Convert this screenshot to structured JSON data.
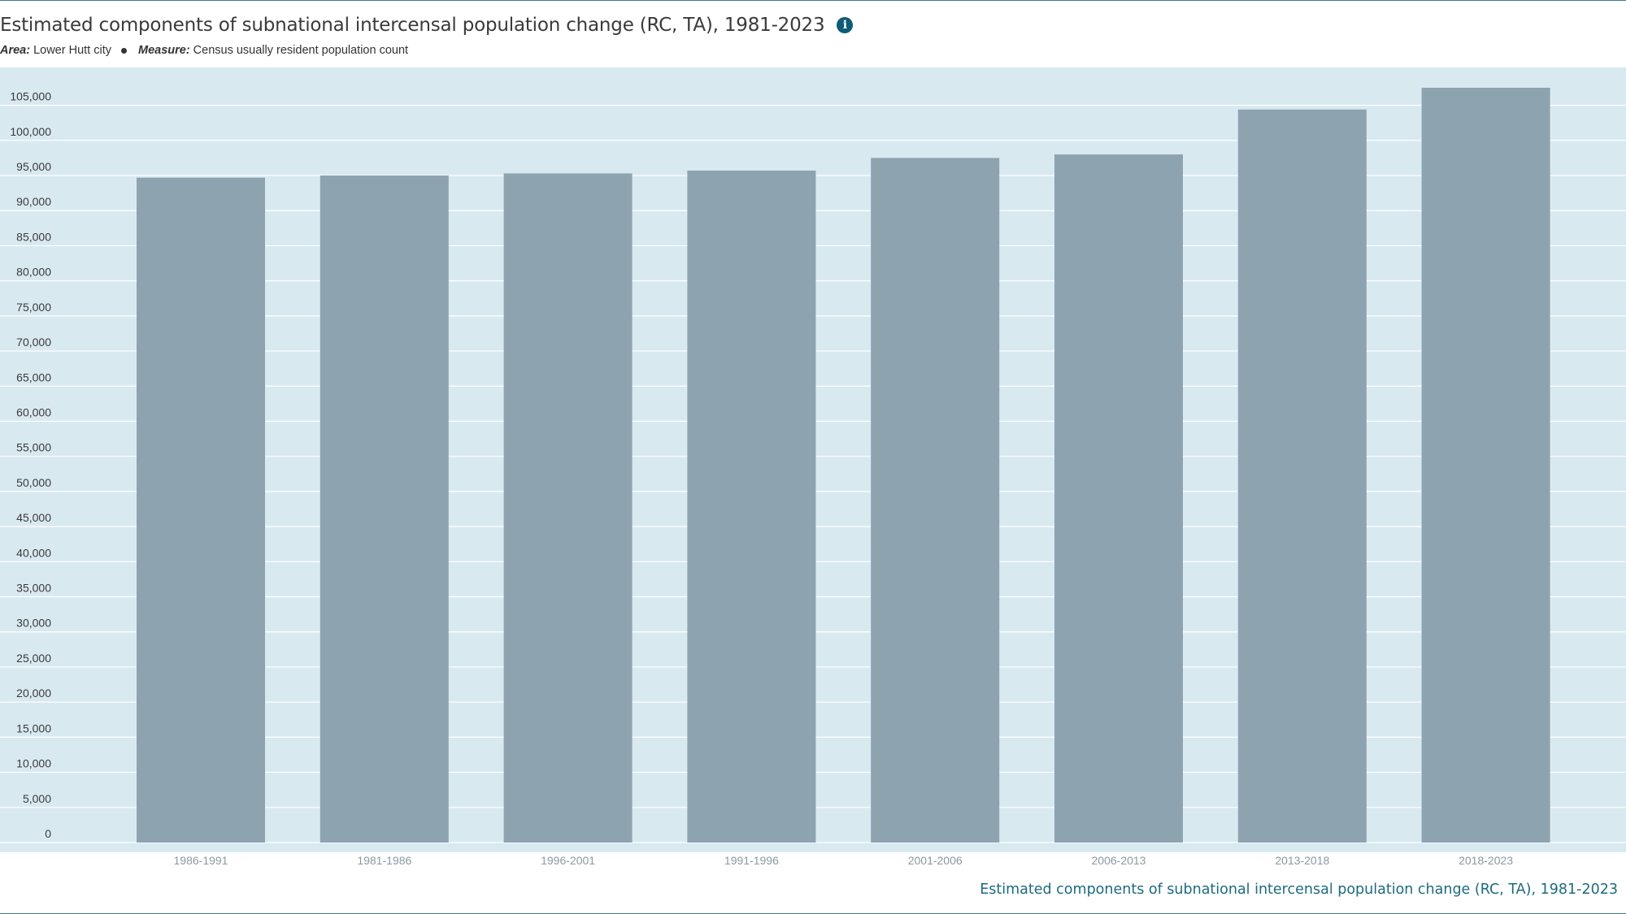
{
  "header": {
    "title": "Estimated components of subnational intercensal population change (RC, TA), 1981-2023",
    "info_icon": "info-icon",
    "filters": [
      {
        "key": "Area:",
        "value": "Lower Hutt city"
      },
      {
        "key": "Measure:",
        "value": "Census usually resident population count"
      }
    ]
  },
  "colors": {
    "bar": "#8ea3b0",
    "plot_background": "#d9e9f0",
    "gridline": "#ffffff",
    "accent": "#0f5b78"
  },
  "chart_data": {
    "type": "bar",
    "title": "Estimated components of subnational intercensal population change (RC, TA), 1981-2023",
    "xlabel": "",
    "ylabel": "",
    "categories": [
      "1986-1991",
      "1981-1986",
      "1996-2001",
      "1991-1996",
      "2001-2006",
      "2006-2013",
      "2013-2018",
      "2018-2023"
    ],
    "values": [
      94700,
      95000,
      95300,
      95700,
      97500,
      98000,
      104400,
      107500
    ],
    "ylim": [
      0,
      107500
    ],
    "yticks": [
      0,
      5000,
      10000,
      15000,
      20000,
      25000,
      30000,
      35000,
      40000,
      45000,
      50000,
      55000,
      60000,
      65000,
      70000,
      75000,
      80000,
      85000,
      90000,
      95000,
      100000,
      105000
    ],
    "ytick_labels": [
      "0",
      "5,000",
      "10,000",
      "15,000",
      "20,000",
      "25,000",
      "30,000",
      "35,000",
      "40,000",
      "45,000",
      "50,000",
      "55,000",
      "60,000",
      "65,000",
      "70,000",
      "75,000",
      "80,000",
      "85,000",
      "90,000",
      "95,000",
      "100,000",
      "105,000"
    ],
    "grid": true,
    "legend": "none"
  },
  "footer": {
    "caption": "Estimated components of subnational intercensal population change (RC, TA), 1981-2023"
  }
}
